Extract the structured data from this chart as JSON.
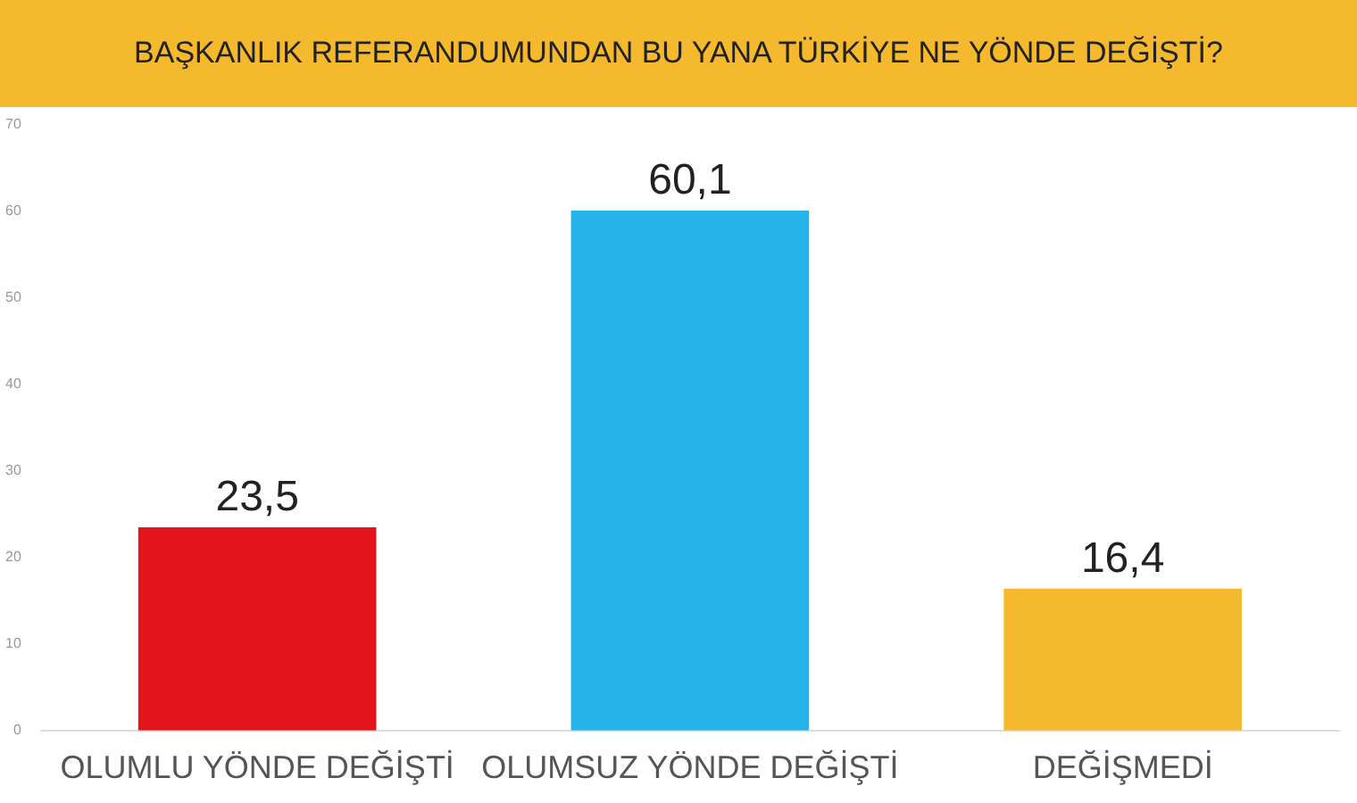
{
  "chart_data": {
    "type": "bar",
    "title": "BAŞKANLIK REFERANDUMUNDAN BU YANA TÜRKİYE NE YÖNDE DEĞİŞTİ?",
    "categories": [
      "OLUMLU YÖNDE DEĞİŞTİ",
      "OLUMSUZ YÖNDE DEĞİŞTİ",
      "DEĞİŞMEDİ"
    ],
    "values": [
      23.5,
      60.1,
      16.4
    ],
    "colors": [
      "#e3141b",
      "#25b4e8",
      "#f5b92e"
    ],
    "ylim": [
      0,
      70
    ],
    "yticks": [
      0,
      10,
      20,
      30,
      40,
      50,
      60,
      70
    ],
    "value_labels": [
      "23,5",
      "60,1",
      "16,4"
    ],
    "grid": false,
    "legend": false
  }
}
